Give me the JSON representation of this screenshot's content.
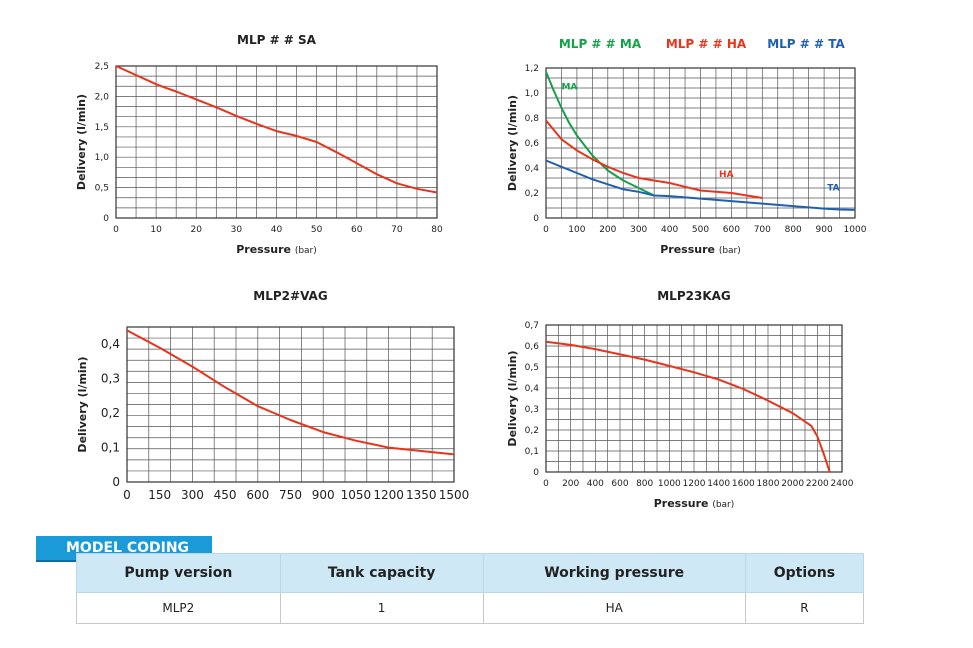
{
  "chart_data": [
    {
      "type": "line",
      "title": "MLP # # SA",
      "xlabel": "Pressure",
      "xlabel_unit": "(bar)",
      "ylabel": "Delivery (l/min)",
      "xlim": [
        0,
        80
      ],
      "ylim": [
        0,
        2.5
      ],
      "xticks": [
        0,
        10,
        20,
        30,
        40,
        50,
        60,
        70,
        80
      ],
      "xtick_labels": [
        "0",
        "10",
        "20",
        "30",
        "40",
        "50",
        "60",
        "70",
        "80"
      ],
      "yticks": [
        0,
        0.5,
        1.0,
        1.5,
        2.0,
        2.5
      ],
      "ytick_labels": [
        "0",
        "0,5",
        "1,0",
        "1,5",
        "2,0",
        "2,5"
      ],
      "grid": true,
      "series": [
        {
          "color": "#e8341c",
          "x": [
            0,
            5,
            10,
            12,
            15,
            20,
            25,
            30,
            35,
            40,
            45,
            50,
            55,
            60,
            65,
            70,
            75,
            80
          ],
          "y": [
            2.5,
            2.35,
            2.2,
            2.15,
            2.08,
            1.95,
            1.82,
            1.68,
            1.55,
            1.43,
            1.35,
            1.25,
            1.08,
            0.9,
            0.72,
            0.57,
            0.48,
            0.42
          ]
        }
      ]
    },
    {
      "type": "line",
      "title": "",
      "xlabel": "Pressure",
      "xlabel_unit": "(bar)",
      "ylabel": "Delivery (l/min)",
      "xlim": [
        0,
        1000
      ],
      "ylim": [
        0,
        1.2
      ],
      "xticks": [
        0,
        100,
        200,
        300,
        400,
        500,
        600,
        700,
        800,
        900,
        1000
      ],
      "xtick_labels": [
        "0",
        "100",
        "200",
        "300",
        "400",
        "500",
        "600",
        "700",
        "800",
        "900",
        "1000"
      ],
      "yticks": [
        0,
        0.2,
        0.4,
        0.6,
        0.8,
        1.0,
        1.2
      ],
      "ytick_labels": [
        "0",
        "0,2",
        "0,4",
        "0,6",
        "0,8",
        "1,0",
        "1,2"
      ],
      "grid": true,
      "legend": [
        {
          "label": "MLP # # MA",
          "color": "#16a04a"
        },
        {
          "label": "MLP # # HA",
          "color": "#e8341c"
        },
        {
          "label": "MLP # # TA",
          "color": "#2160b0"
        }
      ],
      "series": [
        {
          "name": "MA",
          "color": "#16a04a",
          "x": [
            0,
            25,
            50,
            75,
            100,
            150,
            200,
            250,
            300,
            350
          ],
          "y": [
            1.17,
            1.02,
            0.88,
            0.76,
            0.66,
            0.5,
            0.38,
            0.3,
            0.24,
            0.18
          ]
        },
        {
          "name": "HA",
          "color": "#e8341c",
          "x": [
            0,
            50,
            100,
            150,
            200,
            250,
            300,
            350,
            400,
            450,
            500,
            550,
            600,
            650,
            700
          ],
          "y": [
            0.78,
            0.63,
            0.54,
            0.47,
            0.41,
            0.36,
            0.32,
            0.3,
            0.28,
            0.25,
            0.22,
            0.21,
            0.2,
            0.18,
            0.16
          ]
        },
        {
          "name": "TA",
          "color": "#2160b0",
          "x": [
            0,
            50,
            100,
            150,
            200,
            250,
            300,
            350,
            400,
            450,
            500,
            550,
            600,
            650,
            700,
            750,
            800,
            850,
            900,
            950,
            1000
          ],
          "y": [
            0.46,
            0.41,
            0.36,
            0.31,
            0.27,
            0.23,
            0.21,
            0.18,
            0.175,
            0.165,
            0.155,
            0.145,
            0.135,
            0.125,
            0.115,
            0.105,
            0.095,
            0.085,
            0.075,
            0.068,
            0.065
          ]
        }
      ],
      "labels": [
        {
          "text": "MA",
          "color": "#16a04a",
          "x": 50,
          "y": 1.03
        },
        {
          "text": "HA",
          "color": "#e8341c",
          "x": 560,
          "y": 0.33
        },
        {
          "text": "TA",
          "color": "#2160b0",
          "x": 910,
          "y": 0.22
        }
      ]
    },
    {
      "type": "line",
      "title": "MLP2#VAG",
      "xlabel": "",
      "xlabel_unit": "",
      "ylabel": "Delivery (l/min)",
      "xlim": [
        0,
        1500
      ],
      "ylim": [
        0,
        0.45
      ],
      "xticks": [
        0,
        150,
        300,
        450,
        600,
        750,
        900,
        1050,
        1200,
        1350,
        1500
      ],
      "xtick_labels": [
        "0",
        "150",
        "300",
        "450",
        "600",
        "750",
        "900",
        "1050",
        "1200",
        "1350",
        "1500"
      ],
      "yticks": [
        0,
        0.1,
        0.2,
        0.3,
        0.4
      ],
      "ytick_labels": [
        "0",
        "0,1",
        "0,2",
        "0,3",
        "0,4"
      ],
      "grid": true,
      "series": [
        {
          "color": "#e8341c",
          "x": [
            0,
            150,
            300,
            450,
            600,
            750,
            900,
            1050,
            1200,
            1350,
            1500
          ],
          "y": [
            0.44,
            0.39,
            0.335,
            0.275,
            0.22,
            0.18,
            0.145,
            0.12,
            0.1,
            0.09,
            0.08
          ]
        }
      ]
    },
    {
      "type": "line",
      "title": "MLP23KAG",
      "xlabel": "Pressure",
      "xlabel_unit": "(bar)",
      "ylabel": "Delivery (l/min)",
      "xlim": [
        0,
        2400
      ],
      "ylim": [
        0,
        0.7
      ],
      "xticks": [
        0,
        200,
        400,
        600,
        800,
        1000,
        1200,
        1400,
        1600,
        1800,
        2000,
        2200,
        2400
      ],
      "xtick_labels": [
        "0",
        "200",
        "400",
        "600",
        "800",
        "1000",
        "1200",
        "1400",
        "1600",
        "1800",
        "2000",
        "2200",
        "2400"
      ],
      "yticks": [
        0,
        0.1,
        0.2,
        0.3,
        0.4,
        0.5,
        0.6,
        0.7
      ],
      "ytick_labels": [
        "0",
        "0,1",
        "0,2",
        "0,3",
        "0,4",
        "0,5",
        "0,6",
        "0,7"
      ],
      "grid": true,
      "series": [
        {
          "color": "#e8341c",
          "x": [
            0,
            200,
            400,
            600,
            800,
            1000,
            1200,
            1400,
            1600,
            1800,
            2000,
            2150,
            2200,
            2250,
            2300
          ],
          "y": [
            0.62,
            0.605,
            0.585,
            0.56,
            0.535,
            0.505,
            0.475,
            0.44,
            0.395,
            0.34,
            0.28,
            0.22,
            0.17,
            0.09,
            0.0
          ]
        }
      ]
    }
  ],
  "model_coding": {
    "tab_label": "MODEL CODING",
    "headers": [
      "Pump version",
      "Tank capacity",
      "Working pressure",
      "Options"
    ],
    "values": [
      "MLP2",
      "1",
      "HA",
      "R"
    ]
  }
}
